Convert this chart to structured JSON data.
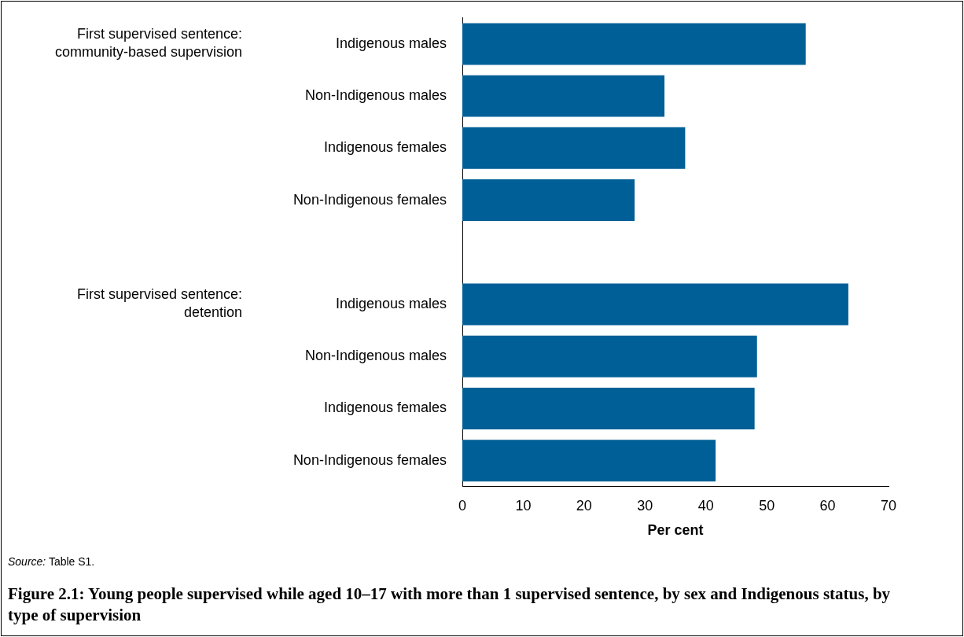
{
  "chart_data": {
    "type": "bar",
    "orientation": "horizontal",
    "title": "Figure 2.1: Young people supervised while aged 10–17 with more than 1 supervised sentence, by sex and Indigenous status, by type of supervision",
    "xlabel": "Per cent",
    "categories": [
      "Indigenous males",
      "Non-Indigenous males",
      "Indigenous females",
      "Non-Indigenous females",
      null,
      "Indigenous males",
      "Non-Indigenous males",
      "Indigenous females",
      "Non-Indigenous females"
    ],
    "values": [
      56.4,
      33.2,
      36.6,
      28.3,
      null,
      63.4,
      48.4,
      48.0,
      41.6
    ],
    "color": "#005f96",
    "xlim": [
      0,
      70
    ],
    "xticks": [
      0,
      10,
      20,
      30,
      40,
      50,
      60,
      70
    ],
    "grid": false,
    "legend": false,
    "annotations": [
      "First supervised sentence:\ncommunity-based supervision",
      "First supervised sentence:\ndetention",
      "Source: Table S1."
    ]
  }
}
